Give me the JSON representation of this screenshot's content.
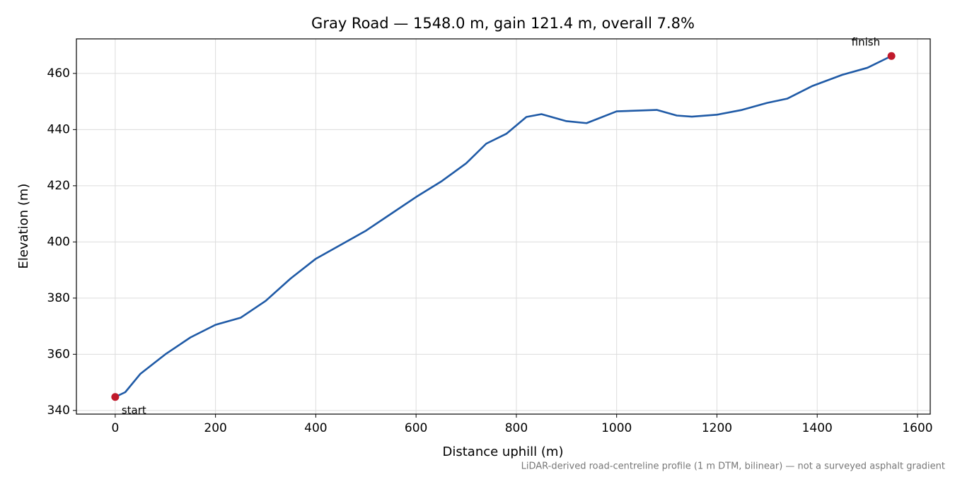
{
  "chart_data": {
    "type": "line",
    "title": "Gray Road — 1548.0 m, gain 121.4 m, overall 7.8%",
    "x_label": "Distance uphill (m)",
    "y_label": "Elevation (m)",
    "footnote": "LiDAR-derived road-centreline profile (1 m DTM, bilinear) — not a surveyed asphalt gradient",
    "start_label": "start",
    "finish_label": "finish",
    "x": [
      0,
      20,
      50,
      100,
      150,
      200,
      250,
      300,
      350,
      400,
      450,
      500,
      550,
      600,
      650,
      700,
      740,
      780,
      820,
      850,
      900,
      940,
      1000,
      1080,
      1120,
      1150,
      1200,
      1250,
      1300,
      1340,
      1390,
      1450,
      1500,
      1548
    ],
    "series": [
      {
        "name": "Elevation",
        "color": "#1f5aa6",
        "values": [
          344.8,
          346.5,
          353,
          360,
          366,
          370.5,
          373,
          379,
          387,
          394,
          399,
          404,
          410,
          416,
          421.5,
          428,
          435,
          438.5,
          444.5,
          445.5,
          443,
          442.3,
          446.5,
          447,
          445,
          444.6,
          445.3,
          447,
          449.5,
          451,
          455.5,
          459.5,
          462,
          466.2
        ]
      }
    ],
    "marker_color": "#c0192b",
    "xlim": [
      -77.4,
      1625.4
    ],
    "ylim": [
      338.7,
      472.3
    ],
    "xticks": [
      0,
      200,
      400,
      600,
      800,
      1000,
      1200,
      1400,
      1600
    ],
    "yticks": [
      340,
      360,
      380,
      400,
      420,
      440,
      460
    ],
    "grid": true
  }
}
